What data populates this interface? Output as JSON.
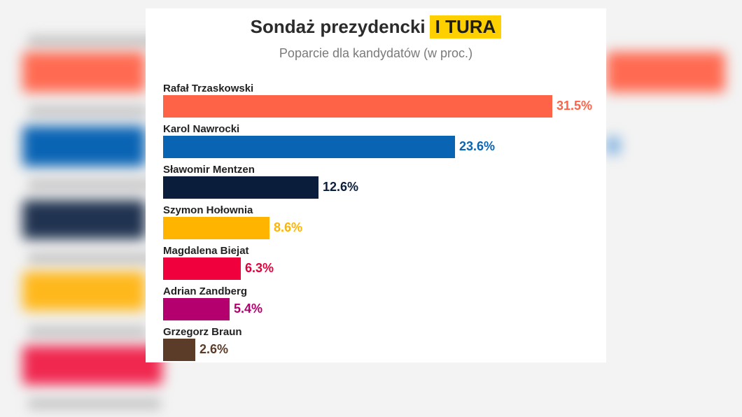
{
  "chart_data": {
    "type": "bar",
    "orientation": "horizontal",
    "title": "Sondaż prezydencki",
    "title_badge": "I TURA",
    "subtitle": "Poparcie dla kandydatów (w proc.)",
    "categories": [
      "Rafał Trzaskowski",
      "Karol Nawrocki",
      "Sławomir Mentzen",
      "Szymon Hołownia",
      "Magdalena Biejat",
      "Adrian Zandberg",
      "Grzegorz Braun"
    ],
    "values": [
      31.5,
      23.6,
      12.6,
      8.6,
      6.3,
      5.4,
      2.6
    ],
    "labels": [
      "31.5%",
      "23.6%",
      "12.6%",
      "8.6%",
      "6.3%",
      "5.4%",
      "2.6%"
    ],
    "colors": [
      "#ff6347",
      "#0a64b4",
      "#0a1e3c",
      "#ffb400",
      "#f0003c",
      "#b4006e",
      "#5a3c28"
    ],
    "label_colors": [
      "#ff6347",
      "#0a64b4",
      "#0a1e3c",
      "#ffb400",
      "#e6003a",
      "#b4006e",
      "#5a3c28"
    ],
    "xlim": [
      0,
      31.5
    ],
    "grid": false,
    "legend": "none"
  }
}
